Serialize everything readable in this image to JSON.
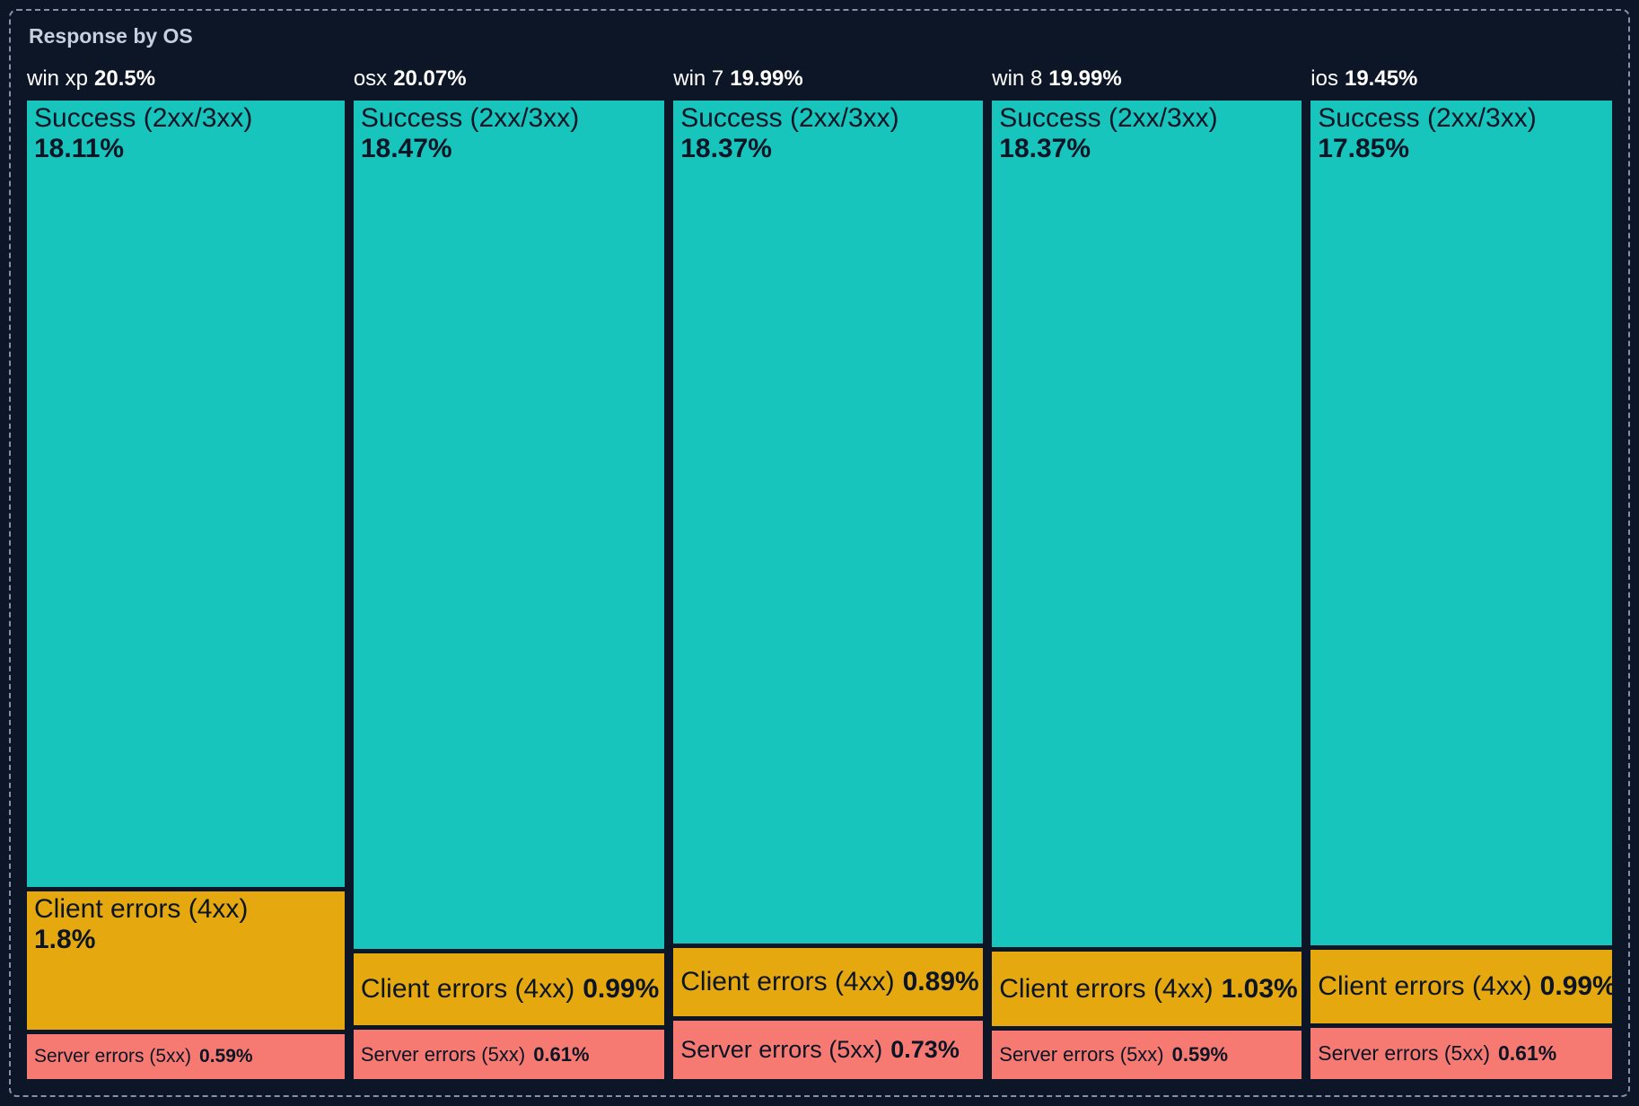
{
  "title": "Response by OS",
  "chart_data": {
    "type": "marimekko",
    "title": "Response by OS",
    "orientation": "columns share width by OS total; segments share column height by value",
    "unit": "%",
    "legend": "none",
    "series_names": [
      "Success (2xx/3xx)",
      "Client errors (4xx)",
      "Server errors (5xx)"
    ],
    "colors": {
      "success": "#18c5bd",
      "client": "#e5a80e",
      "server": "#f77a72",
      "background": "#0d1626",
      "title": "#c5cfdd",
      "column_label": "#ffffff",
      "segment_text": "#0c1525",
      "border": "#8593a9"
    },
    "columns": [
      {
        "os": "win xp",
        "total": 20.5,
        "total_label": "20.5%",
        "segments": [
          {
            "key": "success",
            "name": "Success (2xx/3xx)",
            "value": 18.11,
            "label": "18.11%"
          },
          {
            "key": "client",
            "name": "Client errors (4xx)",
            "value": 1.8,
            "label": "1.8%"
          },
          {
            "key": "server",
            "name": "Server errors (5xx)",
            "value": 0.59,
            "label": "0.59%"
          }
        ]
      },
      {
        "os": "osx",
        "total": 20.07,
        "total_label": "20.07%",
        "segments": [
          {
            "key": "success",
            "name": "Success (2xx/3xx)",
            "value": 18.47,
            "label": "18.47%"
          },
          {
            "key": "client",
            "name": "Client errors (4xx)",
            "value": 0.99,
            "label": "0.99%"
          },
          {
            "key": "server",
            "name": "Server errors (5xx)",
            "value": 0.61,
            "label": "0.61%"
          }
        ]
      },
      {
        "os": "win 7",
        "total": 19.99,
        "total_label": "19.99%",
        "segments": [
          {
            "key": "success",
            "name": "Success (2xx/3xx)",
            "value": 18.37,
            "label": "18.37%"
          },
          {
            "key": "client",
            "name": "Client errors (4xx)",
            "value": 0.89,
            "label": "0.89%"
          },
          {
            "key": "server",
            "name": "Server errors (5xx)",
            "value": 0.73,
            "label": "0.73%"
          }
        ]
      },
      {
        "os": "win 8",
        "total": 19.99,
        "total_label": "19.99%",
        "segments": [
          {
            "key": "success",
            "name": "Success (2xx/3xx)",
            "value": 18.37,
            "label": "18.37%"
          },
          {
            "key": "client",
            "name": "Client errors (4xx)",
            "value": 1.03,
            "label": "1.03%"
          },
          {
            "key": "server",
            "name": "Server errors (5xx)",
            "value": 0.59,
            "label": "0.59%"
          }
        ]
      },
      {
        "os": "ios",
        "total": 19.45,
        "total_label": "19.45%",
        "segments": [
          {
            "key": "success",
            "name": "Success (2xx/3xx)",
            "value": 17.85,
            "label": "17.85%"
          },
          {
            "key": "client",
            "name": "Client errors (4xx)",
            "value": 0.99,
            "label": "0.99%"
          },
          {
            "key": "server",
            "name": "Server errors (5xx)",
            "value": 0.61,
            "label": "0.61%"
          }
        ]
      }
    ]
  }
}
